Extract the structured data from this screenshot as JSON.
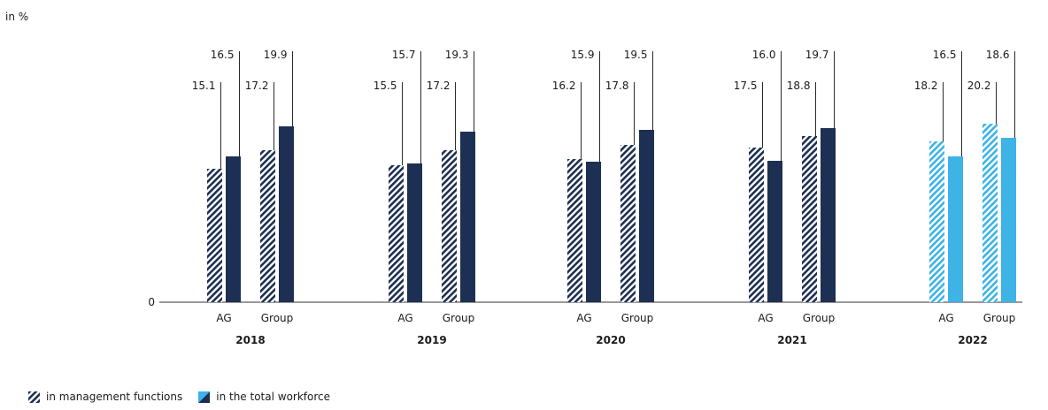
{
  "chart_data": {
    "type": "bar",
    "unit_label": "in %",
    "y_zero_label": "0",
    "groups": [
      {
        "year": "2018",
        "highlight": false,
        "entities": [
          {
            "label": "AG",
            "management": 15.1,
            "total": 16.5
          },
          {
            "label": "Group",
            "management": 17.2,
            "total": 19.9
          }
        ]
      },
      {
        "year": "2019",
        "highlight": false,
        "entities": [
          {
            "label": "AG",
            "management": 15.5,
            "total": 15.7
          },
          {
            "label": "Group",
            "management": 17.2,
            "total": 19.3
          }
        ]
      },
      {
        "year": "2020",
        "highlight": false,
        "entities": [
          {
            "label": "AG",
            "management": 16.2,
            "total": 15.9
          },
          {
            "label": "Group",
            "management": 17.8,
            "total": 19.5
          }
        ]
      },
      {
        "year": "2021",
        "highlight": false,
        "entities": [
          {
            "label": "AG",
            "management": 17.5,
            "total": 16.0
          },
          {
            "label": "Group",
            "management": 18.8,
            "total": 19.7
          }
        ]
      },
      {
        "year": "2022",
        "highlight": true,
        "entities": [
          {
            "label": "AG",
            "management": 18.2,
            "total": 16.5
          },
          {
            "label": "Group",
            "management": 20.2,
            "total": 18.6
          }
        ]
      }
    ],
    "series": [
      {
        "key": "management",
        "name": "in management functions",
        "pattern": "hatched"
      },
      {
        "key": "total",
        "name": "in the total workforce",
        "pattern": "solid"
      }
    ],
    "colors": {
      "dark": "#1d2f52",
      "highlight": "#3db3e6",
      "axis": "#333333"
    }
  }
}
